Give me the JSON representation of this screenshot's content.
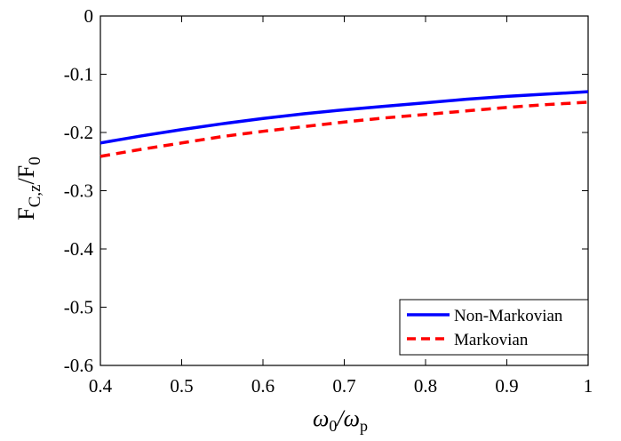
{
  "chart_data": {
    "type": "line",
    "xlabel": {
      "main": "ω",
      "sub1": "0",
      "slash": "/ω",
      "sub2": "p"
    },
    "ylabel": {
      "main": "F",
      "sub1": "C,z",
      "slash": "/F",
      "sub2": "0"
    },
    "xlim": [
      0.4,
      1.0
    ],
    "ylim": [
      -0.6,
      0
    ],
    "xticks": [
      0.4,
      0.5,
      0.6,
      0.7,
      0.8,
      0.9,
      1.0
    ],
    "xtick_labels": [
      "0.4",
      "0.5",
      "0.6",
      "0.7",
      "0.8",
      "0.9",
      "1"
    ],
    "yticks": [
      0,
      -0.1,
      -0.2,
      -0.3,
      -0.4,
      -0.5,
      -0.6
    ],
    "ytick_labels": [
      "0",
      "-0.1",
      "-0.2",
      "-0.3",
      "-0.4",
      "-0.5",
      "-0.6"
    ],
    "grid": false,
    "legend_position": "bottom-right",
    "series": [
      {
        "name": "Non-Markovian",
        "color": "#0000ff",
        "dash": "solid",
        "x": [
          0.4,
          0.45,
          0.5,
          0.55,
          0.6,
          0.65,
          0.7,
          0.75,
          0.8,
          0.85,
          0.9,
          0.95,
          1.0
        ],
        "y": [
          -0.218,
          -0.206,
          -0.195,
          -0.185,
          -0.176,
          -0.168,
          -0.161,
          -0.155,
          -0.149,
          -0.143,
          -0.138,
          -0.134,
          -0.13
        ]
      },
      {
        "name": "Markovian",
        "color": "#ff0000",
        "dash": "dashed",
        "x": [
          0.4,
          0.45,
          0.5,
          0.55,
          0.6,
          0.65,
          0.7,
          0.75,
          0.8,
          0.85,
          0.9,
          0.95,
          1.0
        ],
        "y": [
          -0.241,
          -0.229,
          -0.218,
          -0.207,
          -0.198,
          -0.19,
          -0.182,
          -0.175,
          -0.169,
          -0.163,
          -0.157,
          -0.152,
          -0.148
        ]
      }
    ]
  }
}
